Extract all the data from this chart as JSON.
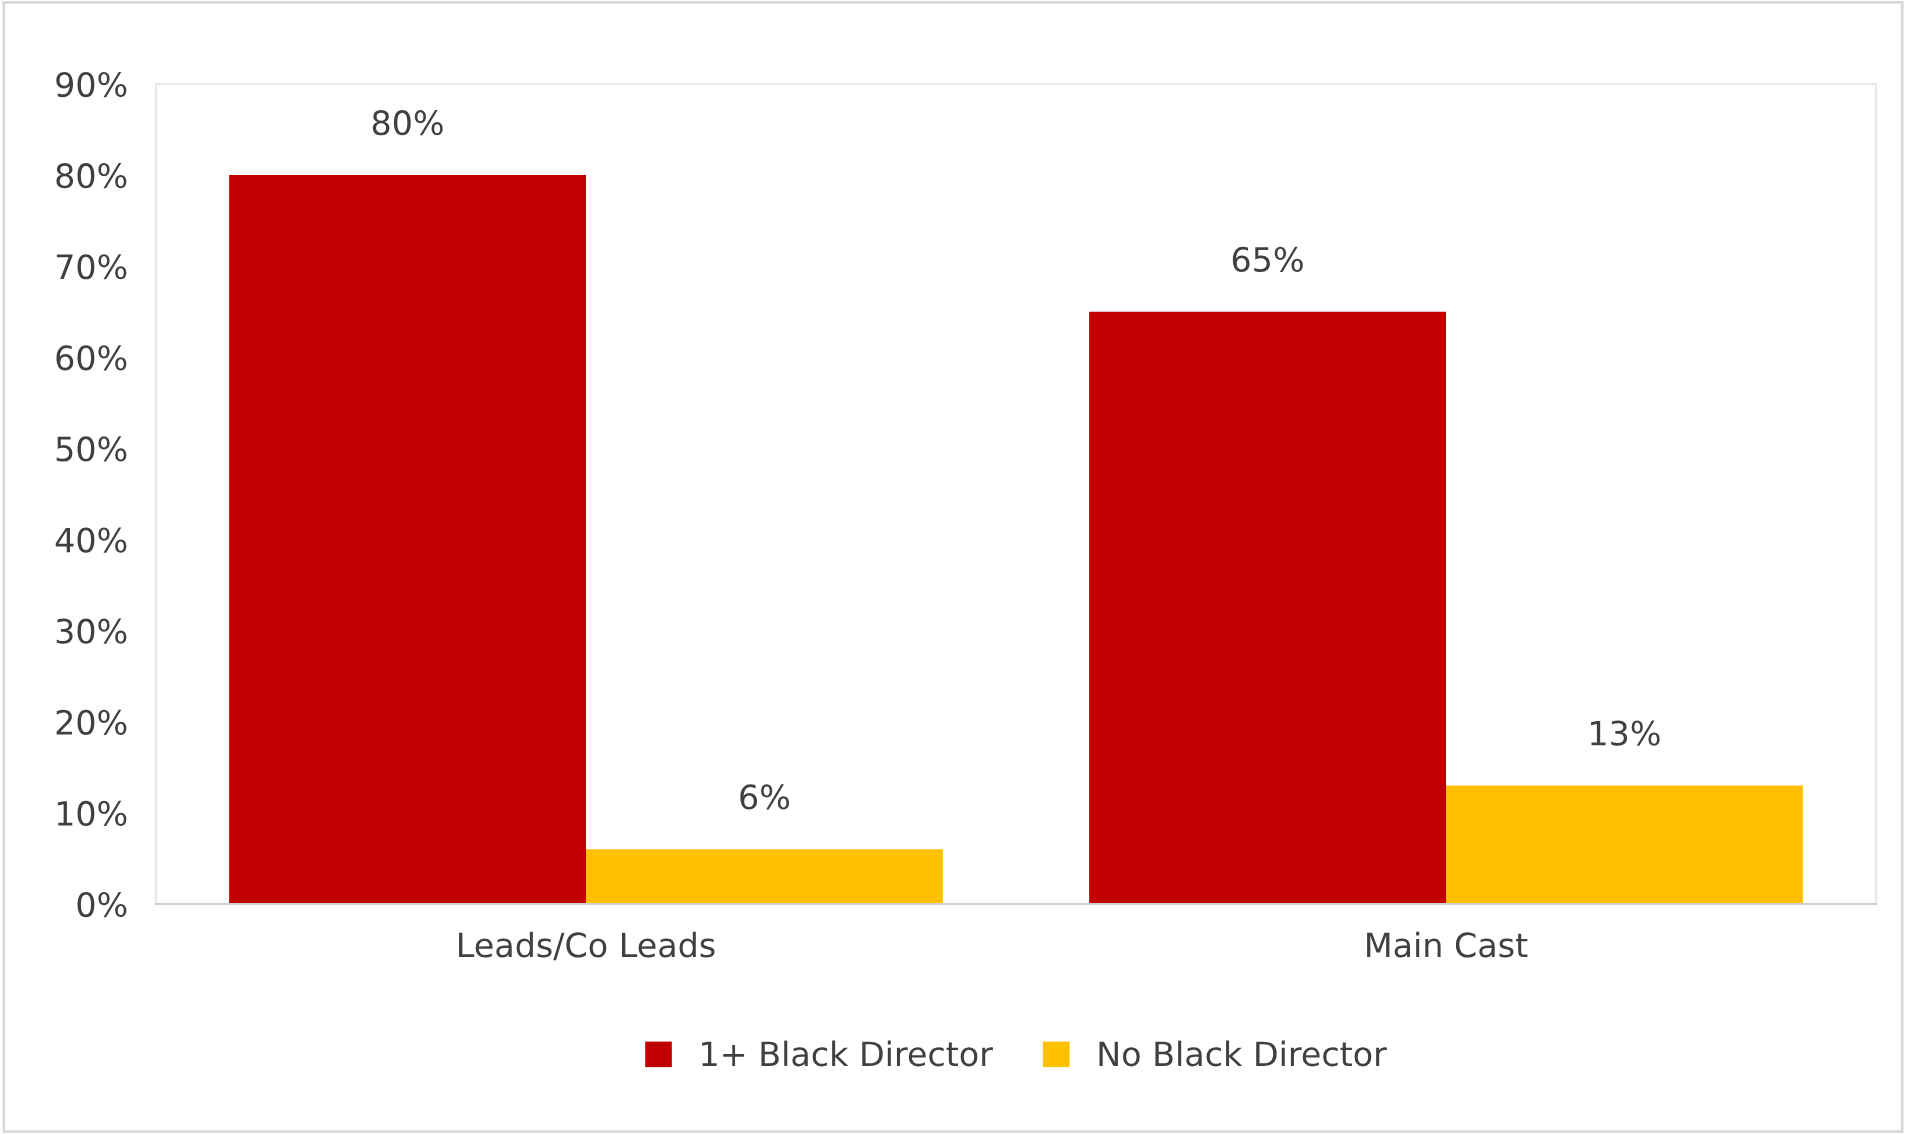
{
  "chart_data": {
    "type": "bar",
    "categories": [
      "Leads/Co Leads",
      "Main Cast"
    ],
    "series": [
      {
        "name": "1+ Black Director",
        "color": "#c00000",
        "values": [
          80,
          65
        ],
        "value_labels": [
          "80%",
          "65%"
        ]
      },
      {
        "name": "No Black Director",
        "color": "#ffc000",
        "values": [
          6,
          13
        ],
        "value_labels": [
          "6%",
          "13%"
        ]
      }
    ],
    "ylim": [
      0,
      90
    ],
    "yticks": [
      {
        "value": 0,
        "label": "0%"
      },
      {
        "value": 10,
        "label": "10%"
      },
      {
        "value": 20,
        "label": "20%"
      },
      {
        "value": 30,
        "label": "30%"
      },
      {
        "value": 40,
        "label": "40%"
      },
      {
        "value": 50,
        "label": "50%"
      },
      {
        "value": 60,
        "label": "60%"
      },
      {
        "value": 70,
        "label": "70%"
      },
      {
        "value": 80,
        "label": "80%"
      },
      {
        "value": 90,
        "label": "90%"
      }
    ],
    "grid": false,
    "legend": "bottom"
  }
}
